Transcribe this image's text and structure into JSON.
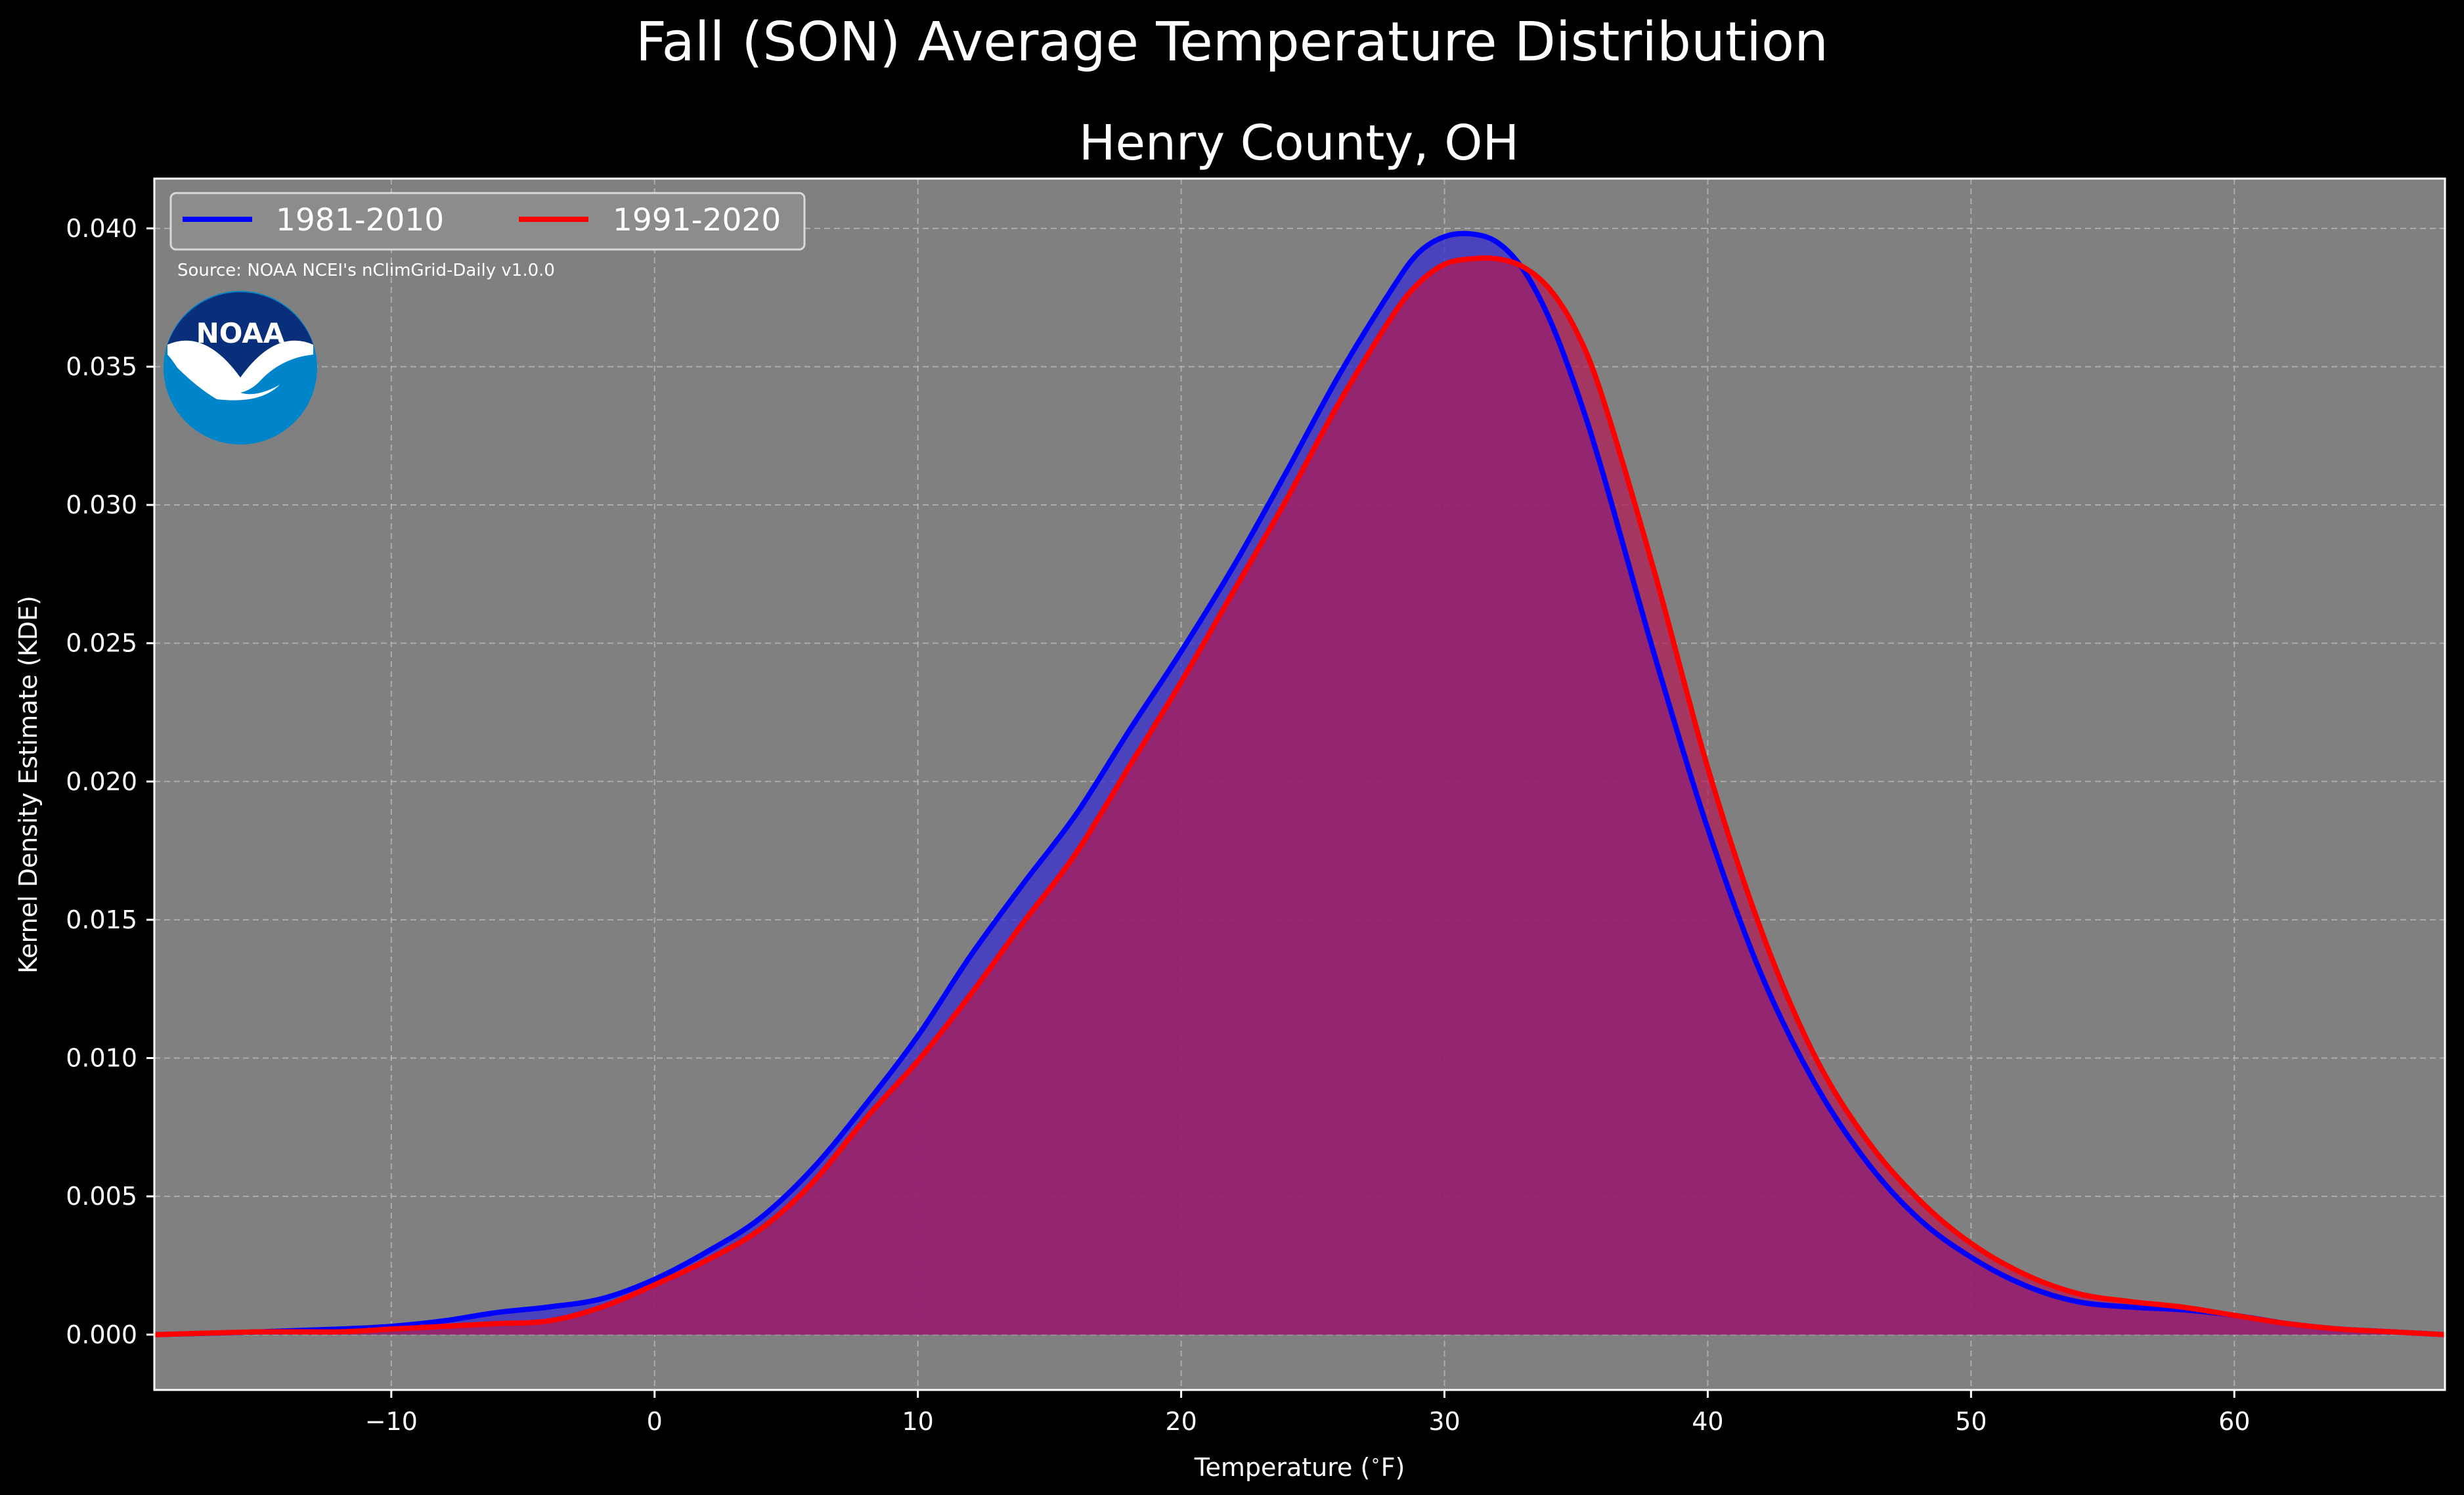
{
  "chart_data": {
    "type": "area",
    "suptitle": "Fall (SON) Average Temperature Distribution",
    "title": "Henry County, OH",
    "xlabel": "Temperature ($^\\circ$F)",
    "ylabel": "Kernel Density Estimate (KDE)",
    "xlim": [
      -19,
      68
    ],
    "ylim": [
      -0.002,
      0.0418
    ],
    "xticks": [
      -10,
      0,
      10,
      20,
      30,
      40,
      50,
      60
    ],
    "xtick_labels": [
      "−10",
      "0",
      "10",
      "20",
      "30",
      "40",
      "50",
      "60"
    ],
    "yticks": [
      0.0,
      0.005,
      0.01,
      0.015,
      0.02,
      0.025,
      0.03,
      0.035,
      0.04
    ],
    "ytick_labels": [
      "0.000",
      "0.005",
      "0.010",
      "0.015",
      "0.020",
      "0.025",
      "0.030",
      "0.035",
      "0.040"
    ],
    "grid": true,
    "legend_position": "top-left",
    "legend_columns": 2,
    "source_note": "Source: NOAA NCEI's nClimGrid-Daily v1.0.0",
    "logo_text": "NOAA",
    "colors": {
      "figure_background": "#000000",
      "plot_background": "#808080",
      "grid": "#bfbfbf",
      "text": "#ffffff",
      "noaa_dark_blue": "#0a2f7a",
      "noaa_light_blue": "#0085ca"
    },
    "series": [
      {
        "name": "1981-2010",
        "color": "#0000ff",
        "fill": "#3a2fd0",
        "x": [
          -19,
          -15,
          -12,
          -10,
          -8,
          -6,
          -4,
          -2,
          0,
          2,
          4,
          6,
          8,
          10,
          12,
          14,
          16,
          18,
          20,
          22,
          24,
          26,
          28,
          29,
          30,
          31,
          32,
          33,
          34,
          35,
          36,
          38,
          40,
          42,
          44,
          46,
          48,
          50,
          52,
          54,
          56,
          58,
          60,
          62,
          64,
          66,
          68
        ],
        "y": [
          0.0,
          0.0001,
          0.0002,
          0.0003,
          0.0005,
          0.0008,
          0.001,
          0.0013,
          0.002,
          0.003,
          0.0042,
          0.006,
          0.0083,
          0.0108,
          0.0137,
          0.0163,
          0.0188,
          0.0218,
          0.0247,
          0.0278,
          0.0312,
          0.0347,
          0.0378,
          0.0391,
          0.0397,
          0.0398,
          0.0395,
          0.0385,
          0.0367,
          0.0342,
          0.0312,
          0.0245,
          0.0183,
          0.0131,
          0.0092,
          0.0063,
          0.0042,
          0.0028,
          0.0018,
          0.0012,
          0.001,
          0.0009,
          0.0007,
          0.0004,
          0.0002,
          0.0001,
          0.0
        ]
      },
      {
        "name": "1991-2020",
        "color": "#ff0000",
        "fill": "#b01a55",
        "x": [
          -19,
          -15,
          -12,
          -10,
          -8,
          -6,
          -4,
          -2,
          0,
          2,
          4,
          6,
          8,
          10,
          12,
          14,
          16,
          18,
          20,
          22,
          24,
          26,
          28,
          29,
          30,
          31,
          32,
          33,
          34,
          35,
          36,
          38,
          40,
          42,
          44,
          46,
          48,
          50,
          52,
          54,
          56,
          58,
          60,
          62,
          64,
          66,
          68
        ],
        "y": [
          0.0,
          0.0001,
          0.0001,
          0.0002,
          0.0003,
          0.0004,
          0.0005,
          0.001,
          0.0018,
          0.0027,
          0.0038,
          0.0055,
          0.0078,
          0.0099,
          0.0123,
          0.0149,
          0.0174,
          0.0205,
          0.0236,
          0.0269,
          0.0302,
          0.0337,
          0.0368,
          0.038,
          0.0387,
          0.0389,
          0.0389,
          0.0386,
          0.0378,
          0.0363,
          0.0339,
          0.0275,
          0.0205,
          0.0147,
          0.0102,
          0.0071,
          0.0049,
          0.0033,
          0.0022,
          0.0015,
          0.0012,
          0.001,
          0.0007,
          0.0004,
          0.0002,
          0.0001,
          0.0
        ]
      }
    ]
  }
}
